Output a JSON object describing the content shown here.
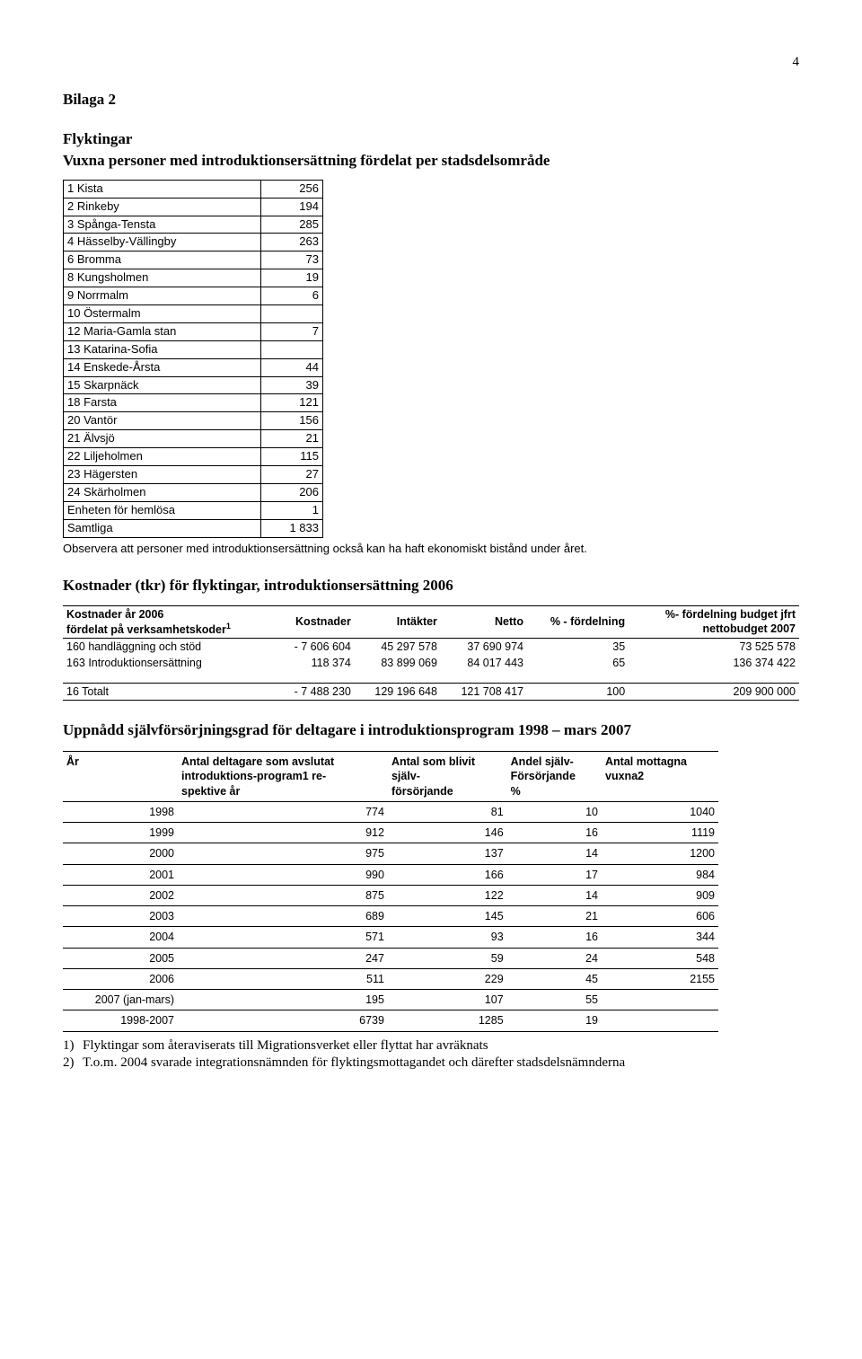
{
  "page_number": "4",
  "bilaga": "Bilaga 2",
  "section1": {
    "title1": "Flyktingar",
    "title2": "Vuxna personer med introduktionsersättning fördelat per stadsdelsområde",
    "rows": [
      [
        "1 Kista",
        "256"
      ],
      [
        "2 Rinkeby",
        "194"
      ],
      [
        "3 Spånga-Tensta",
        "285"
      ],
      [
        "4 Hässelby-Vällingby",
        "263"
      ],
      [
        "6 Bromma",
        "73"
      ],
      [
        "8 Kungsholmen",
        "19"
      ],
      [
        "9 Norrmalm",
        "6"
      ],
      [
        "10 Östermalm",
        ""
      ],
      [
        "12 Maria-Gamla stan",
        "7"
      ],
      [
        "13 Katarina-Sofia",
        ""
      ],
      [
        "14 Enskede-Årsta",
        "44"
      ],
      [
        "15 Skarpnäck",
        "39"
      ],
      [
        "18 Farsta",
        "121"
      ],
      [
        "20 Vantör",
        "156"
      ],
      [
        "21 Älvsjö",
        "21"
      ],
      [
        "22 Liljeholmen",
        "115"
      ],
      [
        "23 Hägersten",
        "27"
      ],
      [
        "24 Skärholmen",
        "206"
      ],
      [
        "Enheten för hemlösa",
        "1"
      ],
      [
        "Samtliga",
        "1 833"
      ]
    ],
    "obs": "Observera att personer med introduktionsersättning också kan ha haft ekonomiskt bistånd under året."
  },
  "section2": {
    "title": "Kostnader (tkr) för flyktingar, introduktionsersättning 2006",
    "head": {
      "c1a": "Kostnader år 2006",
      "c1b": "fördelat på verksamhetskoder",
      "c2": "Kostnader",
      "c3": "Intäkter",
      "c4": "Netto",
      "c5": "% - fördelning",
      "c6a": "%- fördelning budget jfrt",
      "c6b": "nettobudget 2007"
    },
    "rows": [
      [
        "160 handläggning och stöd",
        "- 7 606 604",
        "45 297 578",
        "37 690 974",
        "35",
        "73 525 578"
      ],
      [
        "163 Introduktionsersättning",
        "118 374",
        "83 899 069",
        "84 017 443",
        "65",
        "136 374 422"
      ]
    ],
    "total": [
      "16 Totalt",
      "- 7 488 230",
      "129 196 648",
      "121 708 417",
      "100",
      "209 900 000"
    ]
  },
  "section3": {
    "title": "Uppnådd självförsörjningsgrad för deltagare i introduktionsprogram 1998 – mars 2007",
    "head": {
      "c1": "År",
      "c2a": "Antal deltagare som avslutat",
      "c2b": "introduktions-program",
      "c2c": " re-",
      "c2d": "spektive år",
      "c3a": "Antal som blivit",
      "c3b": "själv-",
      "c3c": "försörjande",
      "c4a": "Andel själv-",
      "c4b": "Försörjande",
      "c4c": "%",
      "c5a": "Antal mottagna",
      "c5b": "vuxna"
    },
    "rows": [
      [
        "1998",
        "774",
        "81",
        "10",
        "1040"
      ],
      [
        "1999",
        "912",
        "146",
        "16",
        "1119"
      ],
      [
        "2000",
        "975",
        "137",
        "14",
        "1200"
      ],
      [
        "2001",
        "990",
        "166",
        "17",
        "984"
      ],
      [
        "2002",
        "875",
        "122",
        "14",
        "909"
      ],
      [
        "2003",
        "689",
        "145",
        "21",
        "606"
      ],
      [
        "2004",
        "571",
        "93",
        "16",
        "344"
      ],
      [
        "2005",
        "247",
        "59",
        "24",
        "548"
      ],
      [
        "2006",
        "511",
        "229",
        "45",
        "2155"
      ],
      [
        "2007 (jan-mars)",
        "195",
        "107",
        "55",
        ""
      ],
      [
        "1998-2007",
        "6739",
        "1285",
        "19",
        ""
      ]
    ]
  },
  "footnotes": {
    "f1n": "1)",
    "f1": "Flyktingar som återaviserats till Migrationsverket eller flyttat har avräknats",
    "f2n": "2)",
    "f2": "T.o.m. 2004 svarade integrationsnämnden för flyktingsmottagandet och därefter stadsdelsnämnderna"
  }
}
